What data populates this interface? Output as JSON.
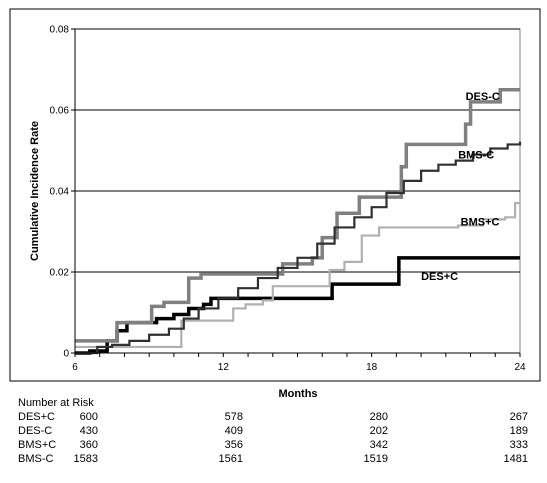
{
  "chart_data": {
    "type": "line",
    "step": true,
    "xlabel": "Months",
    "ylabel": "Cumulative Incidence Rate",
    "xlim": [
      6,
      24
    ],
    "ylim": [
      0,
      0.08
    ],
    "xticks": [
      6,
      12,
      18,
      24
    ],
    "xtick_labels": [
      "6",
      "12",
      "18",
      "24"
    ],
    "yticks": [
      0,
      0.02,
      0.04,
      0.06,
      0.08
    ],
    "ytick_labels": [
      "0",
      "0.02",
      "0.04",
      "0.06",
      "0.08"
    ],
    "grid": {
      "horizontal": true,
      "vertical": false
    },
    "legend": "none",
    "series": [
      {
        "name": "DES+C",
        "color": "#000000",
        "label_at": [
          20,
          0.018
        ],
        "points": [
          [
            6,
            0
          ],
          [
            6.6,
            0
          ],
          [
            6.6,
            0.0005
          ],
          [
            7.3,
            0.001
          ],
          [
            7.3,
            0.003
          ],
          [
            7.7,
            0.003
          ],
          [
            7.7,
            0.0055
          ],
          [
            8.1,
            0.0055
          ],
          [
            8.1,
            0.0075
          ],
          [
            9.0,
            0.0075
          ],
          [
            9.3,
            0.0085
          ],
          [
            10.0,
            0.0095
          ],
          [
            10.6,
            0.011
          ],
          [
            11.2,
            0.012
          ],
          [
            11.5,
            0.0135
          ],
          [
            16.4,
            0.0135
          ],
          [
            16.4,
            0.017
          ],
          [
            19.1,
            0.017
          ],
          [
            19.1,
            0.0235
          ],
          [
            24,
            0.0235
          ]
        ]
      },
      {
        "name": "DES-C",
        "color": "#808080",
        "label_at": [
          21.8,
          0.0625
        ],
        "points": [
          [
            6,
            0.003
          ],
          [
            7.7,
            0.003
          ],
          [
            7.7,
            0.0075
          ],
          [
            8.7,
            0.0075
          ],
          [
            9.1,
            0.0115
          ],
          [
            9.6,
            0.0125
          ],
          [
            10.2,
            0.0125
          ],
          [
            10.6,
            0.0185
          ],
          [
            11.1,
            0.0195
          ],
          [
            13.6,
            0.0195
          ],
          [
            14.4,
            0.022
          ],
          [
            15.6,
            0.0235
          ],
          [
            16.0,
            0.0285
          ],
          [
            16.5,
            0.0285
          ],
          [
            16.6,
            0.0345
          ],
          [
            17.4,
            0.0345
          ],
          [
            17.5,
            0.0385
          ],
          [
            18.6,
            0.0385
          ],
          [
            19.2,
            0.046
          ],
          [
            19.4,
            0.0515
          ],
          [
            21.7,
            0.0515
          ],
          [
            21.8,
            0.0565
          ],
          [
            22.0,
            0.062
          ],
          [
            23.1,
            0.062
          ],
          [
            23.2,
            0.065
          ],
          [
            24,
            0.065
          ]
        ]
      },
      {
        "name": "BMS+C",
        "color": "#b0b0b0",
        "label_at": [
          21.6,
          0.0315
        ],
        "points": [
          [
            6,
            0.0015
          ],
          [
            10.3,
            0.0015
          ],
          [
            10.3,
            0.008
          ],
          [
            12.3,
            0.008
          ],
          [
            12.4,
            0.011
          ],
          [
            12.9,
            0.012
          ],
          [
            13.6,
            0.013
          ],
          [
            14.0,
            0.0165
          ],
          [
            16.2,
            0.0165
          ],
          [
            16.3,
            0.0205
          ],
          [
            16.9,
            0.0225
          ],
          [
            17.6,
            0.029
          ],
          [
            18.1,
            0.029
          ],
          [
            18.3,
            0.031
          ],
          [
            21.3,
            0.031
          ],
          [
            21.5,
            0.0315
          ],
          [
            22.0,
            0.0315
          ],
          [
            22.5,
            0.033
          ],
          [
            23.4,
            0.0335
          ],
          [
            23.8,
            0.037
          ],
          [
            24,
            0.037
          ]
        ]
      },
      {
        "name": "BMS-C",
        "color": "#303030",
        "label_at": [
          21.5,
          0.048
        ],
        "points": [
          [
            6,
            0
          ],
          [
            6.9,
            0.0015
          ],
          [
            7.5,
            0.002
          ],
          [
            8.2,
            0.003
          ],
          [
            9.0,
            0.0045
          ],
          [
            9.8,
            0.006
          ],
          [
            10.4,
            0.0085
          ],
          [
            11.0,
            0.011
          ],
          [
            11.8,
            0.0135
          ],
          [
            12.6,
            0.016
          ],
          [
            13.4,
            0.0185
          ],
          [
            14.2,
            0.021
          ],
          [
            15.0,
            0.0235
          ],
          [
            15.8,
            0.027
          ],
          [
            16.5,
            0.031
          ],
          [
            17.3,
            0.0335
          ],
          [
            18.0,
            0.036
          ],
          [
            18.6,
            0.0395
          ],
          [
            19.3,
            0.0425
          ],
          [
            20.0,
            0.045
          ],
          [
            20.7,
            0.0465
          ],
          [
            21.4,
            0.0475
          ],
          [
            22.1,
            0.049
          ],
          [
            22.8,
            0.0505
          ],
          [
            23.5,
            0.0515
          ],
          [
            24,
            0.0522
          ]
        ]
      }
    ]
  },
  "risk_table": {
    "title": "Number at Risk",
    "rows": [
      {
        "name": "DES+C",
        "values": [
          "600",
          "578",
          "280",
          "267"
        ]
      },
      {
        "name": "DES-C",
        "values": [
          "430",
          "409",
          "202",
          "189"
        ]
      },
      {
        "name": "BMS+C",
        "values": [
          "360",
          "356",
          "342",
          "333"
        ]
      },
      {
        "name": "BMS-C",
        "values": [
          "1583",
          "1561",
          "1519",
          "1481"
        ]
      }
    ]
  }
}
